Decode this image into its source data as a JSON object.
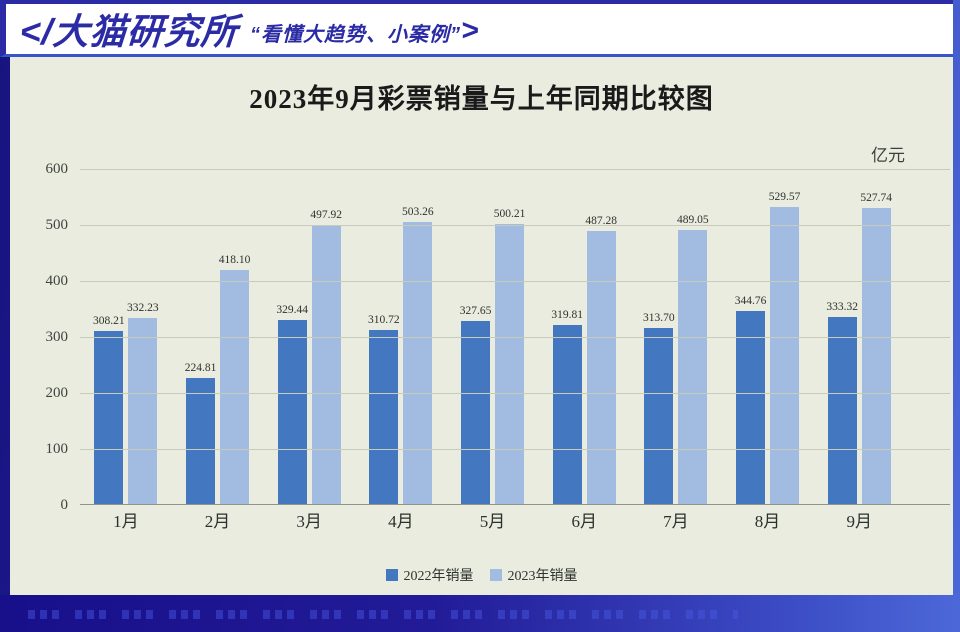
{
  "header": {
    "logo": "</大猫研究所",
    "tagline": "“看懂大趋势、小案例”",
    "arrow": ">",
    "brand_color": "#2b2ba5"
  },
  "chart_data": {
    "type": "bar",
    "title": "2023年9月彩票销量与上年同期比较图",
    "unit": "亿元",
    "categories": [
      "1月",
      "2月",
      "3月",
      "4月",
      "5月",
      "6月",
      "7月",
      "8月",
      "9月"
    ],
    "series": [
      {
        "name": "2022年销量",
        "color": "#4377bf",
        "values": [
          308.21,
          224.81,
          329.44,
          310.72,
          327.65,
          319.81,
          313.7,
          344.76,
          333.32
        ]
      },
      {
        "name": "2023年销量",
        "color": "#a2bbe1",
        "values": [
          332.23,
          418.1,
          497.92,
          503.26,
          500.21,
          487.28,
          489.05,
          529.57,
          527.74
        ]
      }
    ],
    "value_labels": [
      [
        "308.21",
        "224.81",
        "329.44",
        "310.72",
        "327.65",
        "319.81",
        "313.70",
        "344.76",
        "333.32"
      ],
      [
        "332.23",
        "418.10",
        "497.92",
        "503.26",
        "500.21",
        "487.28",
        "489.05",
        "529.57",
        "527.74"
      ]
    ],
    "ylim": [
      0,
      600
    ],
    "yticks": [
      0,
      100,
      200,
      300,
      400,
      500,
      600
    ],
    "grid": true,
    "legend_position": "bottom",
    "background_color": "#e9ecdf"
  }
}
